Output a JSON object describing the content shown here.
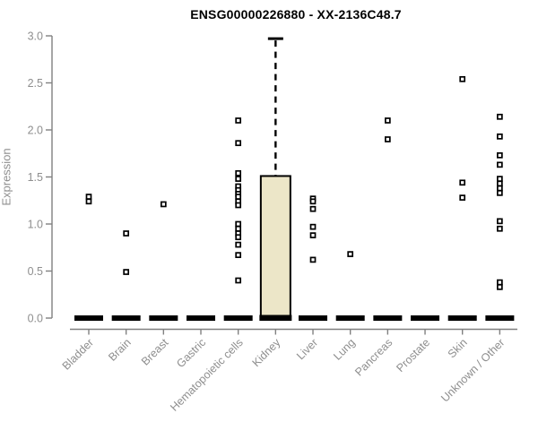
{
  "chart_data": {
    "type": "boxplot",
    "title": "ENSG00000226880 - XX-2136C48.7",
    "xlabel": "",
    "ylabel": "Expression",
    "ylim": [
      0,
      3
    ],
    "yticks": [
      0,
      0.5,
      1,
      1.5,
      2,
      2.5,
      3
    ],
    "grid": false,
    "legend": false,
    "marker": "open-square",
    "categories": [
      "Bladder",
      "Brain",
      "Breast",
      "Gastric",
      "Hematopoietic cells",
      "Kidney",
      "Liver",
      "Lung",
      "Pancreas",
      "Prostate",
      "Skin",
      "Unknown / Other"
    ],
    "boxes": [
      {
        "category": "Bladder",
        "whisker_low": 0,
        "q1": 0,
        "median": 0,
        "q3": 0,
        "whisker_high": 0,
        "outliers": [
          1.29,
          1.24
        ]
      },
      {
        "category": "Brain",
        "whisker_low": 0,
        "q1": 0,
        "median": 0,
        "q3": 0,
        "whisker_high": 0,
        "outliers": [
          0.9,
          0.49
        ]
      },
      {
        "category": "Breast",
        "whisker_low": 0,
        "q1": 0,
        "median": 0,
        "q3": 0,
        "whisker_high": 0,
        "outliers": [
          1.21
        ]
      },
      {
        "category": "Gastric",
        "whisker_low": 0,
        "q1": 0,
        "median": 0,
        "q3": 0,
        "whisker_high": 0,
        "outliers": []
      },
      {
        "category": "Hematopoietic cells",
        "whisker_low": 0,
        "q1": 0,
        "median": 0,
        "q3": 0,
        "whisker_high": 0,
        "outliers": [
          2.1,
          1.86,
          1.54,
          1.48,
          1.4,
          1.36,
          1.32,
          1.29,
          1.24,
          1.2,
          1.0,
          0.95,
          0.9,
          0.86,
          0.78,
          0.67,
          0.4
        ]
      },
      {
        "category": "Kidney",
        "whisker_low": 0,
        "q1": 0,
        "median": 0,
        "q3": 1.51,
        "whisker_high": 2.97,
        "outliers": []
      },
      {
        "category": "Liver",
        "whisker_low": 0,
        "q1": 0,
        "median": 0,
        "q3": 0,
        "whisker_high": 0,
        "outliers": [
          1.27,
          1.24,
          1.16,
          0.97,
          0.88,
          0.62
        ]
      },
      {
        "category": "Lung",
        "whisker_low": 0,
        "q1": 0,
        "median": 0,
        "q3": 0,
        "whisker_high": 0,
        "outliers": [
          0.68
        ]
      },
      {
        "category": "Pancreas",
        "whisker_low": 0,
        "q1": 0,
        "median": 0,
        "q3": 0,
        "whisker_high": 0,
        "outliers": [
          2.1,
          1.9
        ]
      },
      {
        "category": "Prostate",
        "whisker_low": 0,
        "q1": 0,
        "median": 0,
        "q3": 0,
        "whisker_high": 0,
        "outliers": []
      },
      {
        "category": "Skin",
        "whisker_low": 0,
        "q1": 0,
        "median": 0,
        "q3": 0,
        "whisker_high": 0,
        "outliers": [
          2.54,
          1.44,
          1.28
        ]
      },
      {
        "category": "Unknown / Other",
        "whisker_low": 0,
        "q1": 0,
        "median": 0,
        "q3": 0,
        "whisker_high": 0,
        "outliers": [
          2.14,
          1.93,
          1.73,
          1.63,
          1.48,
          1.43,
          1.38,
          1.33,
          1.03,
          0.95,
          0.38,
          0.33
        ]
      }
    ],
    "colors": {
      "background": "#FFFFFF",
      "title": "#000000",
      "axis_line": "#808080",
      "tick_label": "#8E8E8E",
      "box_fill": "#ECE6C8",
      "box_border": "#000000",
      "median": "#000000",
      "whisker": "#000000",
      "outlier_fill": "#FFFFFF",
      "outlier_border": "#000000"
    }
  }
}
